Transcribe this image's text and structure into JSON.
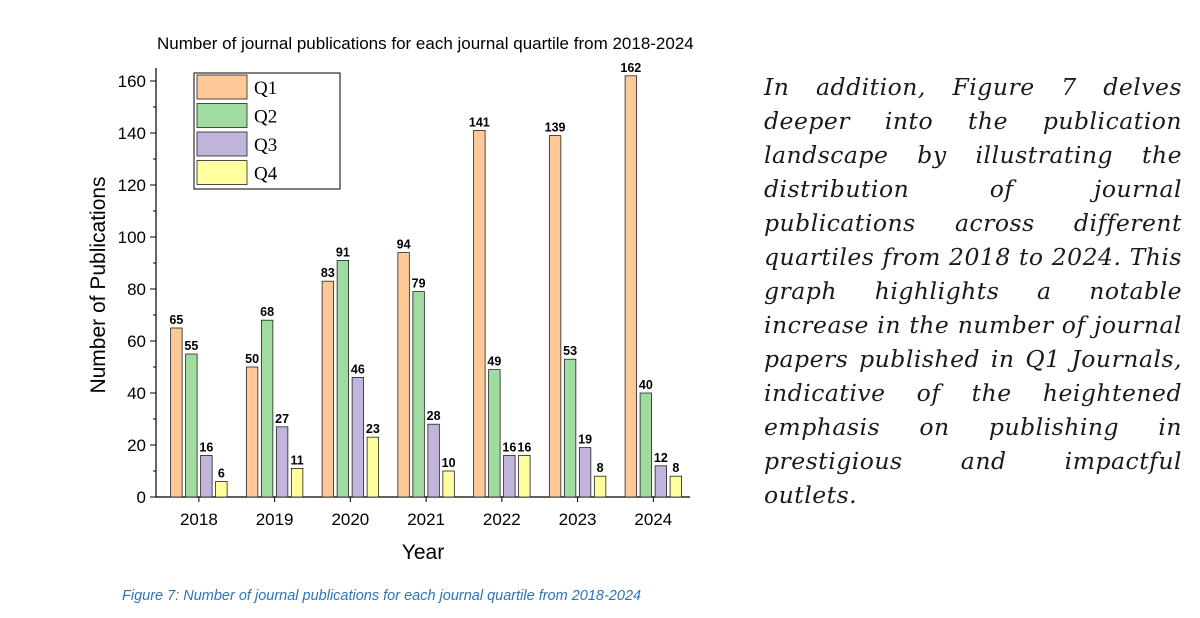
{
  "chart_data": {
    "type": "bar",
    "title": "Number of journal publications for each journal quartile from 2018-2024",
    "xlabel": "Year",
    "ylabel": "Number of Publications",
    "categories": [
      "2018",
      "2019",
      "2020",
      "2021",
      "2022",
      "2023",
      "2024"
    ],
    "ylim": [
      0,
      165
    ],
    "yticks": [
      0,
      20,
      40,
      60,
      80,
      100,
      120,
      140,
      160
    ],
    "grid": false,
    "legend_position": "top-left",
    "series": [
      {
        "name": "Q1",
        "color": "#ffc896",
        "values": [
          65,
          50,
          83,
          94,
          141,
          139,
          162
        ]
      },
      {
        "name": "Q2",
        "color": "#a0dca0",
        "values": [
          55,
          68,
          91,
          79,
          49,
          53,
          40
        ]
      },
      {
        "name": "Q3",
        "color": "#c2b5dc",
        "values": [
          16,
          27,
          46,
          28,
          16,
          19,
          12
        ]
      },
      {
        "name": "Q4",
        "color": "#ffff9e",
        "values": [
          6,
          11,
          23,
          10,
          16,
          8,
          8
        ]
      }
    ]
  },
  "body_text": "In addition, Figure 7 delves deeper into the publication landscape by illustrating the distribution of journal publications across different quartiles from 2018 to 2024. This graph highlights a notable increase in the number of journal papers published in Q1 Journals, indicative of the heightened emphasis on publishing in prestigious and impactful outlets.",
  "figure_caption": "Figure 7: Number of journal publications for each journal quartile from 2018-2024"
}
